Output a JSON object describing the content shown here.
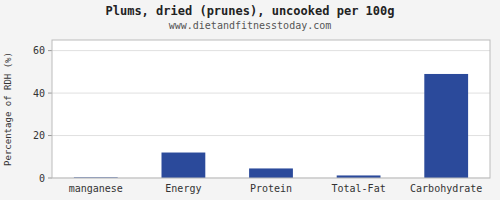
{
  "chart_data": {
    "type": "bar",
    "title": "Plums, dried (prunes), uncooked per 100g",
    "subtitle": "www.dietandfitnesstoday.com",
    "categories": [
      "manganese",
      "Energy",
      "Protein",
      "Total-Fat",
      "Carbohydrate"
    ],
    "values": [
      0.3,
      12,
      4.5,
      1.2,
      49
    ],
    "color": "#2b4a9b",
    "ylabel": "Percentage of RDH (%)",
    "ylim": [
      0,
      65
    ],
    "yticks": [
      0,
      20,
      40,
      60
    ],
    "grid": true
  }
}
